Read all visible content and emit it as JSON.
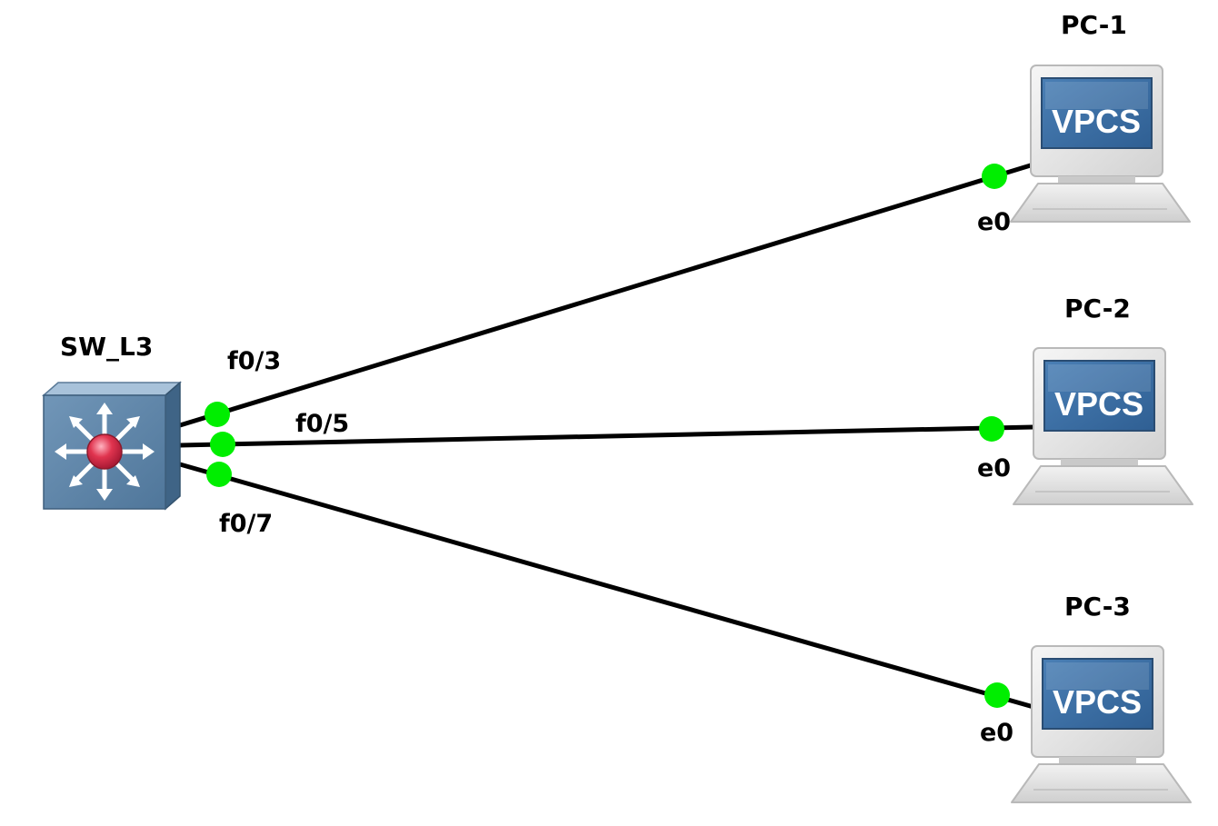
{
  "nodes": {
    "switch": {
      "name": "SW_L3",
      "icon": "layer3-switch-icon"
    },
    "pc1": {
      "name": "PC-1",
      "icon": "vpcs-computer-icon",
      "screen_text": "VPCS"
    },
    "pc2": {
      "name": "PC-2",
      "icon": "vpcs-computer-icon",
      "screen_text": "VPCS"
    },
    "pc3": {
      "name": "PC-3",
      "icon": "vpcs-computer-icon",
      "screen_text": "VPCS"
    }
  },
  "links": [
    {
      "from": "SW_L3",
      "from_port": "f0/3",
      "to": "PC-1",
      "to_port": "e0"
    },
    {
      "from": "SW_L3",
      "from_port": "f0/5",
      "to": "PC-2",
      "to_port": "e0"
    },
    {
      "from": "SW_L3",
      "from_port": "f0/7",
      "to": "PC-3",
      "to_port": "e0"
    }
  ],
  "colors": {
    "link_line": "#000000",
    "port_up": "#00ee00",
    "switch_body": "#5f86a8",
    "switch_center": "#e0344f",
    "vpcs_screen": "#3b6ea5"
  }
}
